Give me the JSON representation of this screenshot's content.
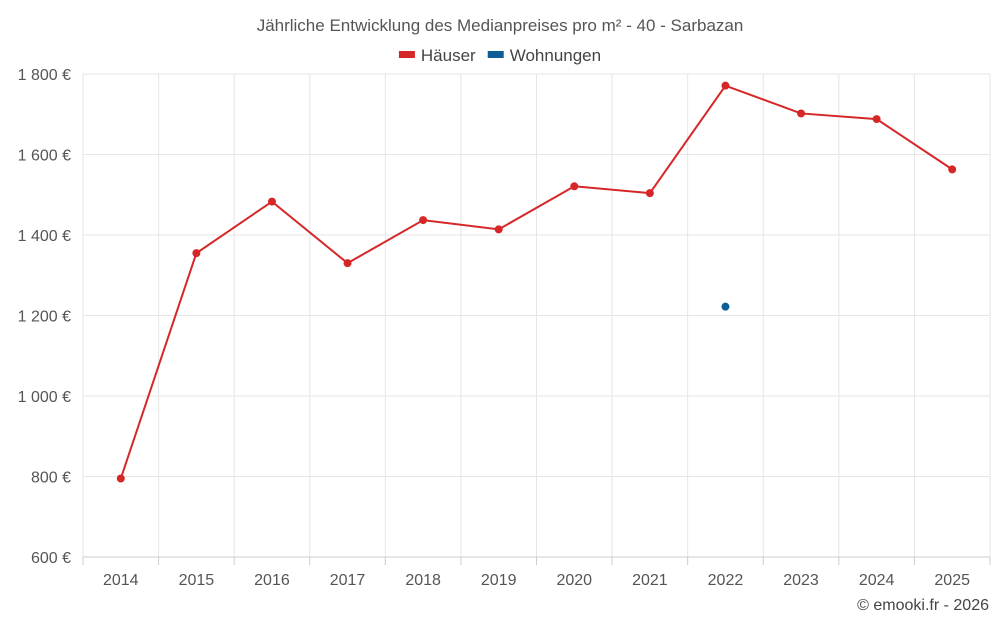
{
  "chart_data": {
    "type": "line",
    "title": "Jährliche Entwicklung des Medianpreises pro m² - 40 - Sarbazan",
    "categories": [
      "2014",
      "2015",
      "2016",
      "2017",
      "2018",
      "2019",
      "2020",
      "2021",
      "2022",
      "2023",
      "2024",
      "2025"
    ],
    "series": [
      {
        "name": "Häuser",
        "color": "#d62728",
        "values": [
          795,
          1355,
          1483,
          1330,
          1437,
          1414,
          1521,
          1504,
          1771,
          1702,
          1688,
          1563
        ]
      },
      {
        "name": "Wohnungen",
        "color": "#0b5f95",
        "values": [
          null,
          null,
          null,
          null,
          null,
          null,
          null,
          null,
          1222,
          null,
          null,
          null
        ]
      }
    ],
    "ylim": [
      600,
      1800
    ],
    "yticks": [
      600,
      800,
      1000,
      1200,
      1400,
      1600,
      1800
    ],
    "ytick_labels": [
      "600 €",
      "800 €",
      "1 000 €",
      "1 200 €",
      "1 400 €",
      "1 600 €",
      "1 800 €"
    ],
    "xlabel": "",
    "ylabel": "",
    "grid": true,
    "legend_position": "top-center",
    "credit": "© emooki.fr - 2026"
  }
}
